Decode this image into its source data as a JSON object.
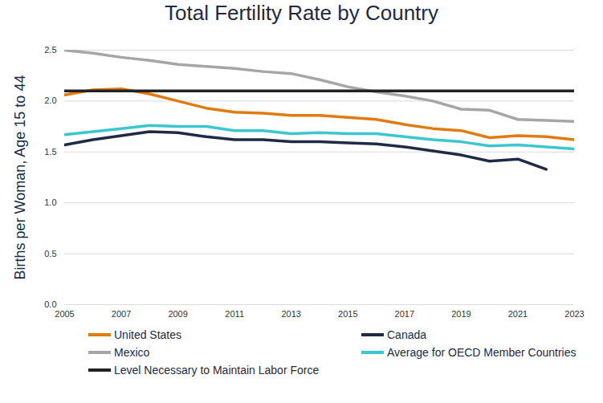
{
  "chart_data": {
    "type": "line",
    "title": "Total Fertility Rate by Country",
    "y_label": "Births per Woman, Age 15 to 44",
    "x": [
      2005,
      2006,
      2007,
      2008,
      2009,
      2010,
      2011,
      2012,
      2013,
      2014,
      2015,
      2016,
      2017,
      2018,
      2019,
      2020,
      2021,
      2022,
      2023
    ],
    "series": [
      {
        "name": "United States",
        "color": "#e07b10",
        "values": [
          2.06,
          2.11,
          2.12,
          2.07,
          2.0,
          1.93,
          1.89,
          1.88,
          1.86,
          1.86,
          1.84,
          1.82,
          1.77,
          1.73,
          1.71,
          1.64,
          1.66,
          1.65,
          1.62
        ]
      },
      {
        "name": "Canada",
        "color": "#1f2a44",
        "values": [
          1.57,
          1.62,
          1.66,
          1.7,
          1.69,
          1.65,
          1.62,
          1.62,
          1.6,
          1.6,
          1.59,
          1.58,
          1.55,
          1.51,
          1.47,
          1.41,
          1.43,
          1.33,
          null
        ]
      },
      {
        "name": "Mexico",
        "color": "#a6a6a6",
        "values": [
          2.5,
          2.47,
          2.43,
          2.4,
          2.36,
          2.34,
          2.32,
          2.29,
          2.27,
          2.21,
          2.14,
          2.09,
          2.05,
          2.0,
          1.92,
          1.91,
          1.82,
          1.81,
          1.8
        ]
      },
      {
        "name": "Average for OECD Member Countries",
        "color": "#3cc6d0",
        "values": [
          1.67,
          1.7,
          1.73,
          1.76,
          1.75,
          1.75,
          1.71,
          1.71,
          1.68,
          1.69,
          1.68,
          1.68,
          1.65,
          1.62,
          1.6,
          1.56,
          1.57,
          1.55,
          1.53
        ]
      },
      {
        "name": "Level Necessary to Maintain Labor Force",
        "color": "#222222",
        "values": [
          2.1,
          2.1,
          2.1,
          2.1,
          2.1,
          2.1,
          2.1,
          2.1,
          2.1,
          2.1,
          2.1,
          2.1,
          2.1,
          2.1,
          2.1,
          2.1,
          2.1,
          2.1,
          2.1
        ]
      }
    ],
    "xlim": [
      2005,
      2023
    ],
    "xticks": [
      2005,
      2007,
      2009,
      2011,
      2013,
      2015,
      2017,
      2019,
      2021,
      2023
    ],
    "ylim": [
      0,
      2.5
    ],
    "yticks": [
      0,
      0.5,
      1,
      1.5,
      2,
      2.5
    ],
    "grid": true,
    "legend": "bottom"
  }
}
